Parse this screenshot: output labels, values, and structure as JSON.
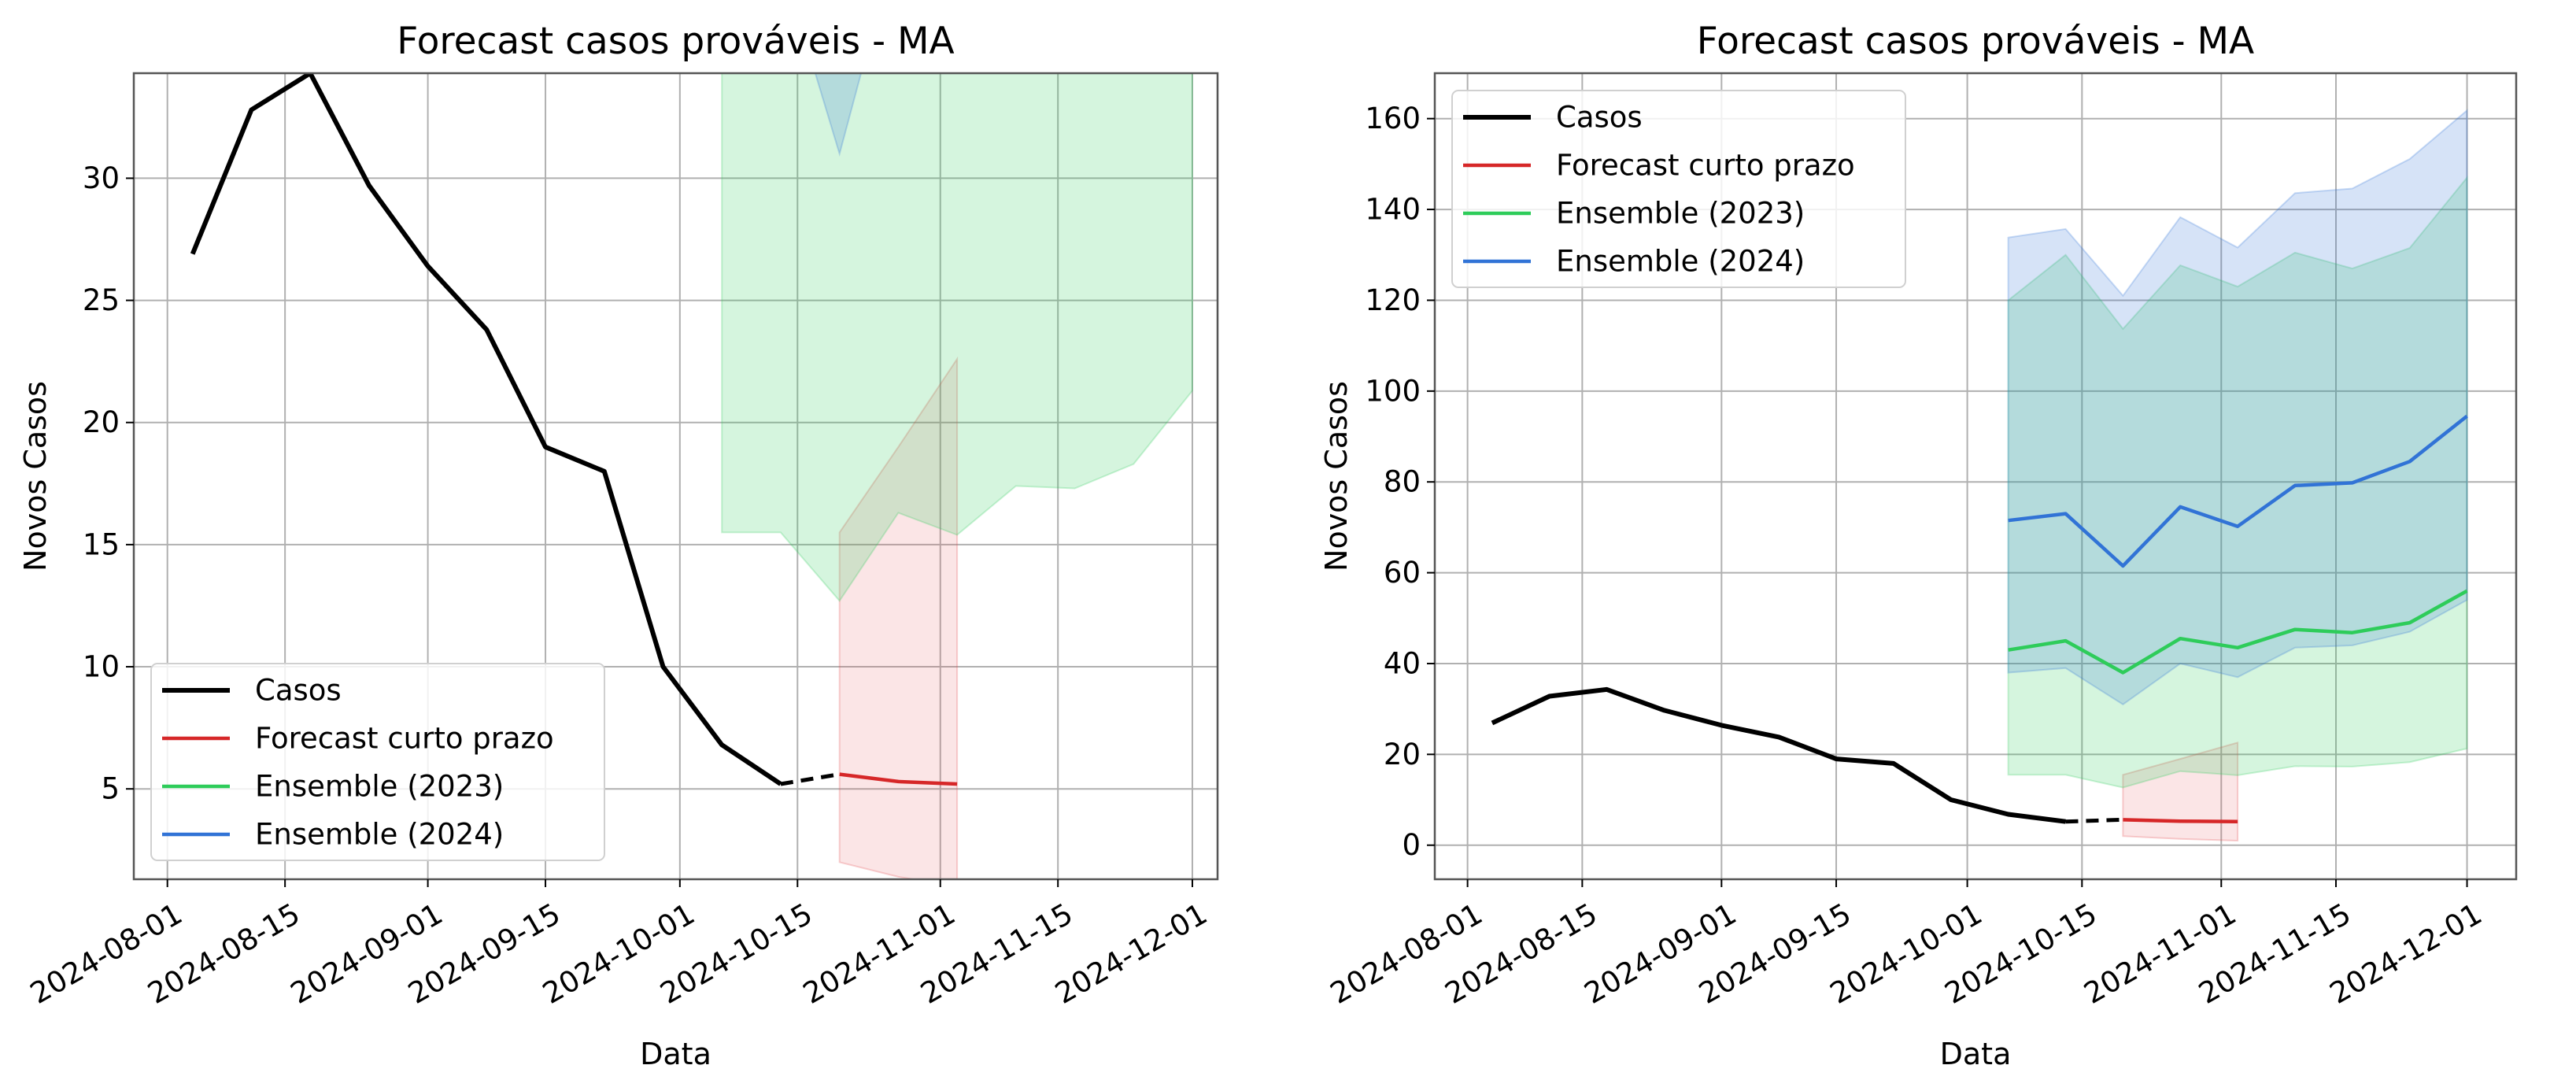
{
  "chart_data": [
    {
      "type": "line",
      "title": "Forecast casos prováveis - MA",
      "xlabel": "Data",
      "ylabel": "Novos Casos",
      "xlim": [
        "2024-07-28",
        "2024-12-04"
      ],
      "ylim": [
        1.3,
        34.3
      ],
      "xticks": [
        "2024-08-01",
        "2024-08-15",
        "2024-09-01",
        "2024-09-15",
        "2024-10-01",
        "2024-10-15",
        "2024-11-01",
        "2024-11-15",
        "2024-12-01"
      ],
      "yticks": [
        5,
        10,
        15,
        20,
        25,
        30
      ],
      "grid": true,
      "legend_position": "lower-left",
      "legend": [
        "Casos",
        "Forecast curto prazo",
        "Ensemble (2023)",
        "Ensemble (2024)"
      ],
      "series": [
        {
          "name": "Casos",
          "color": "#000000",
          "x": [
            "2024-08-04",
            "2024-08-11",
            "2024-08-18",
            "2024-08-25",
            "2024-09-01",
            "2024-09-08",
            "2024-09-15",
            "2024-09-22",
            "2024-09-29",
            "2024-10-06",
            "2024-10-13"
          ],
          "values": [
            26.9,
            32.8,
            34.3,
            29.7,
            26.4,
            23.8,
            19.0,
            18.0,
            10.0,
            6.8,
            5.2
          ]
        },
        {
          "name": "Forecast curto prazo",
          "color": "#d62728",
          "x": [
            "2024-10-20",
            "2024-10-27",
            "2024-11-03"
          ],
          "values": [
            5.6,
            5.3,
            5.2
          ],
          "band_lower": [
            2.0,
            1.4,
            1.0
          ],
          "band_upper": [
            15.5,
            19.0,
            22.6
          ]
        },
        {
          "name": "Ensemble (2023)",
          "color": "#2ecc5a",
          "x": [
            "2024-10-06",
            "2024-10-13",
            "2024-10-20",
            "2024-10-27",
            "2024-11-03",
            "2024-11-10",
            "2024-11-17",
            "2024-11-24",
            "2024-12-01"
          ],
          "band_lower": [
            15.5,
            15.5,
            12.7,
            16.3,
            15.4,
            17.4,
            17.3,
            18.3,
            21.3
          ],
          "band_upper": [
            120.0,
            130.0,
            113.7,
            127.7,
            123.0,
            130.5,
            127.0,
            131.5,
            147.0
          ]
        },
        {
          "name": "Ensemble (2024)",
          "color": "#3173d6",
          "x": [
            "2024-10-06",
            "2024-10-13",
            "2024-10-20",
            "2024-10-27",
            "2024-11-03",
            "2024-11-10",
            "2024-11-17",
            "2024-11-24",
            "2024-12-01"
          ],
          "band_lower": [
            38.0,
            39.0,
            31.0,
            40.0,
            37.0,
            43.5,
            44.0,
            47.0,
            54.0
          ],
          "band_upper": [
            133.8,
            135.7,
            121.0,
            138.3,
            131.6,
            143.6,
            144.6,
            151.1,
            161.8
          ]
        }
      ],
      "dashed_connector": {
        "x": [
          "2024-10-13",
          "2024-10-20"
        ],
        "values": [
          5.2,
          5.6
        ]
      }
    },
    {
      "type": "line",
      "title": "Forecast casos prováveis - MA",
      "xlabel": "Data",
      "ylabel": "Novos Casos",
      "xlim": [
        "2024-07-28",
        "2024-12-07"
      ],
      "ylim": [
        -7.5,
        170
      ],
      "xticks": [
        "2024-08-01",
        "2024-08-15",
        "2024-09-01",
        "2024-09-15",
        "2024-10-01",
        "2024-10-15",
        "2024-11-01",
        "2024-11-15",
        "2024-12-01"
      ],
      "yticks": [
        0,
        20,
        40,
        60,
        80,
        100,
        120,
        140,
        160
      ],
      "grid": true,
      "legend_position": "upper-left",
      "legend": [
        "Casos",
        "Forecast curto prazo",
        "Ensemble (2023)",
        "Ensemble (2024)"
      ],
      "series": [
        {
          "name": "Casos",
          "color": "#000000",
          "x": [
            "2024-08-04",
            "2024-08-11",
            "2024-08-18",
            "2024-08-25",
            "2024-09-01",
            "2024-09-08",
            "2024-09-15",
            "2024-09-22",
            "2024-09-29",
            "2024-10-06",
            "2024-10-13"
          ],
          "values": [
            26.9,
            32.8,
            34.3,
            29.7,
            26.4,
            23.8,
            19.0,
            18.0,
            10.0,
            6.8,
            5.2
          ]
        },
        {
          "name": "Forecast curto prazo",
          "color": "#d62728",
          "x": [
            "2024-10-20",
            "2024-10-27",
            "2024-11-03"
          ],
          "values": [
            5.6,
            5.3,
            5.2
          ],
          "band_lower": [
            2.0,
            1.4,
            1.0
          ],
          "band_upper": [
            15.5,
            19.0,
            22.6
          ]
        },
        {
          "name": "Ensemble (2023)",
          "color": "#2ecc5a",
          "x": [
            "2024-10-06",
            "2024-10-13",
            "2024-10-20",
            "2024-10-27",
            "2024-11-03",
            "2024-11-10",
            "2024-11-17",
            "2024-11-24",
            "2024-12-01"
          ],
          "values": [
            43.0,
            45.0,
            38.0,
            45.5,
            43.5,
            47.5,
            46.8,
            49.0,
            56.0
          ],
          "band_lower": [
            15.5,
            15.5,
            12.7,
            16.3,
            15.4,
            17.4,
            17.3,
            18.3,
            21.3
          ],
          "band_upper": [
            120.0,
            130.0,
            113.7,
            127.7,
            123.0,
            130.5,
            127.0,
            131.5,
            147.0
          ]
        },
        {
          "name": "Ensemble (2024)",
          "color": "#3173d6",
          "x": [
            "2024-10-06",
            "2024-10-13",
            "2024-10-20",
            "2024-10-27",
            "2024-11-03",
            "2024-11-10",
            "2024-11-17",
            "2024-11-24",
            "2024-12-01"
          ],
          "values": [
            71.5,
            73.0,
            61.5,
            74.5,
            70.2,
            79.2,
            79.8,
            84.5,
            94.5
          ],
          "band_lower": [
            38.0,
            39.0,
            31.0,
            40.0,
            37.0,
            43.5,
            44.0,
            47.0,
            54.0
          ],
          "band_upper": [
            133.8,
            135.7,
            121.0,
            138.3,
            131.6,
            143.6,
            144.6,
            151.1,
            161.8
          ]
        }
      ],
      "dashed_connector": {
        "x": [
          "2024-10-13",
          "2024-10-20"
        ],
        "values": [
          5.2,
          5.6
        ]
      }
    }
  ]
}
